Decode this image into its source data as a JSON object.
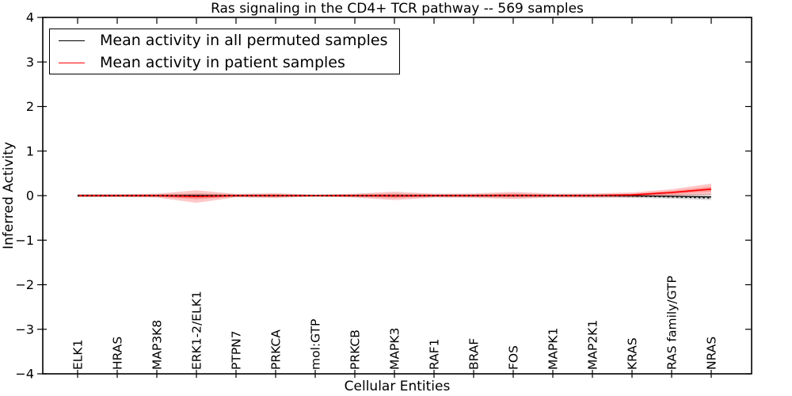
{
  "figure": {
    "title": "Ras signaling in the CD4+ TCR pathway -- 569 samples",
    "background": "#ffffff"
  },
  "legend": {
    "position": "upper left",
    "items": [
      {
        "label": "Mean activity in all permuted samples",
        "color": "#000000"
      },
      {
        "label": "Mean activity in patient samples",
        "color": "#ff0000"
      }
    ]
  },
  "chart_data": {
    "type": "line",
    "title": "Ras signaling in the CD4+ TCR pathway -- 569 samples",
    "xlabel": "Cellular Entities",
    "ylabel": "Inferred Activity",
    "ylim": [
      -4,
      4
    ],
    "yticks": [
      -4,
      -3,
      -2,
      -1,
      0,
      1,
      2,
      3,
      4
    ],
    "grid": false,
    "legend_position": "upper left",
    "categories": [
      "ELK1",
      "HRAS",
      "MAP3K8",
      "ERK1-2/ELK1",
      "PTPN7",
      "PRKCA",
      "mol:GTP",
      "PRKCB",
      "MAPK3",
      "RAF1",
      "BRAF",
      "FOS",
      "MAPK1",
      "MAP2K1",
      "KRAS",
      "RAS family/GTP",
      "NRAS"
    ],
    "series": [
      {
        "name": "Mean activity in all permuted samples",
        "color": "#000000",
        "line_style": "solid",
        "mean": [
          0,
          0,
          0,
          0,
          0,
          0,
          0,
          0,
          0,
          0,
          0,
          0,
          0,
          0,
          -0.005,
          -0.015,
          -0.03
        ],
        "std": [
          0.035,
          0.035,
          0.035,
          0.045,
          0.035,
          0.035,
          0.03,
          0.035,
          0.045,
          0.035,
          0.035,
          0.045,
          0.035,
          0.035,
          0.045,
          0.055,
          0.07
        ],
        "band_color": "#aaaaaa",
        "band_opacity": 0.45,
        "inner_band": false
      },
      {
        "name": "Mean activity in patient samples",
        "color": "#ff0000",
        "line_style": "solid",
        "mean": [
          0,
          0,
          0,
          -0.02,
          0,
          0,
          0,
          0,
          -0.005,
          0,
          0,
          0.005,
          0,
          0,
          0.015,
          0.07,
          0.145
        ],
        "std": [
          0.03,
          0.03,
          0.045,
          0.14,
          0.04,
          0.055,
          0.02,
          0.045,
          0.095,
          0.045,
          0.05,
          0.08,
          0.045,
          0.05,
          0.055,
          0.075,
          0.125
        ],
        "band_color": "#ff0000",
        "band_opacity": 0.22,
        "inner_band": true
      }
    ],
    "baseline_dotted": {
      "color": "#000000",
      "line_style": "dotted",
      "values": [
        0,
        0,
        0,
        0,
        0,
        0,
        0,
        0,
        0,
        0,
        0,
        0,
        0,
        0,
        -0.01,
        -0.03,
        -0.055
      ]
    }
  }
}
